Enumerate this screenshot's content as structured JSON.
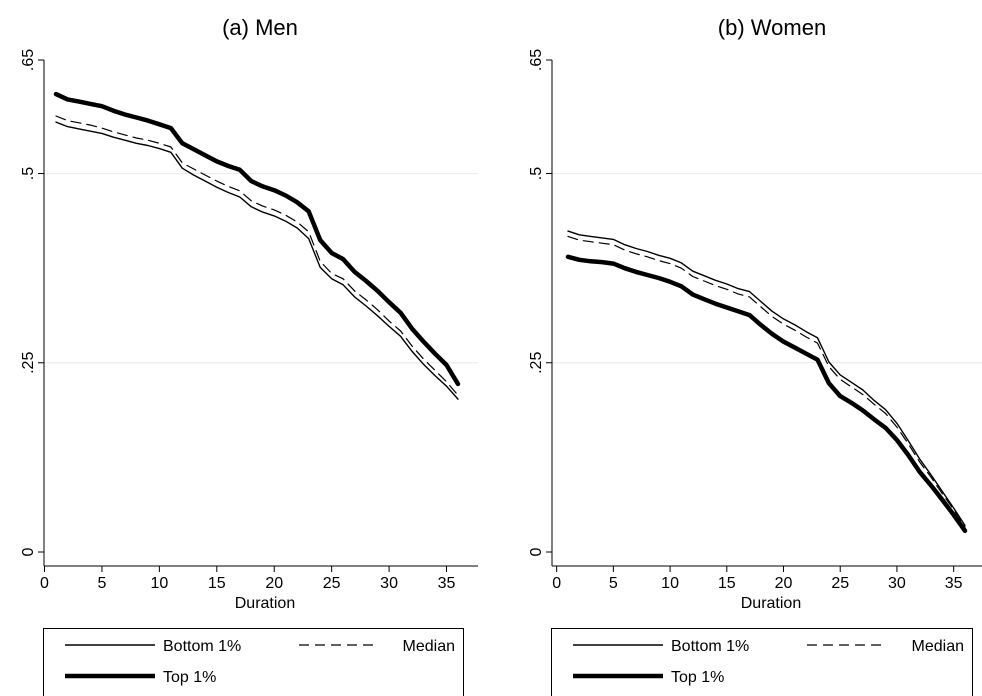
{
  "chart_data": [
    {
      "type": "line",
      "title": "(a) Men",
      "xlabel": "Duration",
      "ylabel": "",
      "xlim": [
        1,
        36
      ],
      "ylim": [
        0,
        0.65
      ],
      "xticks": [
        "0",
        "5",
        "10",
        "15",
        "20",
        "25",
        "30",
        "35"
      ],
      "yticks": [
        "0",
        ".25",
        ".5",
        ".65"
      ],
      "grid": "horizontal",
      "legend": {
        "position": "bottom",
        "entries": [
          "Bottom 1%",
          "Median",
          "Top 1%"
        ]
      },
      "series": [
        {
          "name": "Bottom 1%",
          "style": "thin-solid",
          "x": [
            1,
            2,
            3,
            4,
            5,
            6,
            7,
            8,
            9,
            10,
            11,
            12,
            13,
            14,
            15,
            16,
            17,
            18,
            19,
            20,
            21,
            22,
            23,
            24,
            25,
            26,
            27,
            28,
            29,
            30,
            31,
            32,
            33,
            34,
            35,
            36
          ],
          "values": [
            0.568,
            0.562,
            0.559,
            0.556,
            0.553,
            0.548,
            0.544,
            0.54,
            0.537,
            0.533,
            0.528,
            0.507,
            0.498,
            0.49,
            0.482,
            0.475,
            0.469,
            0.456,
            0.449,
            0.444,
            0.437,
            0.428,
            0.414,
            0.376,
            0.361,
            0.353,
            0.337,
            0.325,
            0.312,
            0.298,
            0.285,
            0.265,
            0.248,
            0.233,
            0.219,
            0.202
          ]
        },
        {
          "name": "Median",
          "style": "dashed",
          "x": [
            1,
            2,
            3,
            4,
            5,
            6,
            7,
            8,
            9,
            10,
            11,
            12,
            13,
            14,
            15,
            16,
            17,
            18,
            19,
            20,
            21,
            22,
            23,
            24,
            25,
            26,
            27,
            28,
            29,
            30,
            31,
            32,
            33,
            34,
            35,
            36
          ],
          "values": [
            0.576,
            0.57,
            0.567,
            0.564,
            0.56,
            0.555,
            0.551,
            0.547,
            0.544,
            0.54,
            0.535,
            0.514,
            0.506,
            0.498,
            0.49,
            0.483,
            0.477,
            0.464,
            0.457,
            0.452,
            0.445,
            0.436,
            0.423,
            0.384,
            0.368,
            0.361,
            0.345,
            0.333,
            0.32,
            0.305,
            0.292,
            0.272,
            0.255,
            0.24,
            0.225,
            0.207
          ]
        },
        {
          "name": "Top 1%",
          "style": "thick-solid",
          "x": [
            1,
            2,
            3,
            4,
            5,
            6,
            7,
            8,
            9,
            10,
            11,
            12,
            13,
            14,
            15,
            16,
            17,
            18,
            19,
            20,
            21,
            22,
            23,
            24,
            25,
            26,
            27,
            28,
            29,
            30,
            31,
            32,
            33,
            34,
            35,
            36
          ],
          "values": [
            0.605,
            0.598,
            0.595,
            0.592,
            0.589,
            0.583,
            0.578,
            0.574,
            0.57,
            0.565,
            0.56,
            0.54,
            0.532,
            0.524,
            0.516,
            0.51,
            0.505,
            0.49,
            0.483,
            0.478,
            0.471,
            0.462,
            0.45,
            0.412,
            0.395,
            0.387,
            0.37,
            0.358,
            0.345,
            0.33,
            0.316,
            0.295,
            0.278,
            0.262,
            0.247,
            0.222
          ]
        }
      ]
    },
    {
      "type": "line",
      "title": "(b) Women",
      "xlabel": "Duration",
      "ylabel": "",
      "xlim": [
        1,
        36
      ],
      "ylim": [
        0,
        0.65
      ],
      "xticks": [
        "0",
        "5",
        "10",
        "15",
        "20",
        "25",
        "30",
        "35"
      ],
      "yticks": [
        "0",
        ".25",
        ".5",
        ".65"
      ],
      "grid": "horizontal",
      "legend": {
        "position": "bottom",
        "entries": [
          "Bottom 1%",
          "Median",
          "Top 1%"
        ]
      },
      "series": [
        {
          "name": "Bottom 1%",
          "style": "thin-solid",
          "x": [
            1,
            2,
            3,
            4,
            5,
            6,
            7,
            8,
            9,
            10,
            11,
            12,
            13,
            14,
            15,
            16,
            17,
            18,
            19,
            20,
            21,
            22,
            23,
            24,
            25,
            26,
            27,
            28,
            29,
            30,
            31,
            32,
            33,
            34,
            35,
            36
          ],
          "values": [
            0.424,
            0.419,
            0.417,
            0.415,
            0.413,
            0.406,
            0.401,
            0.397,
            0.392,
            0.388,
            0.382,
            0.371,
            0.365,
            0.359,
            0.354,
            0.348,
            0.344,
            0.331,
            0.318,
            0.308,
            0.3,
            0.291,
            0.283,
            0.251,
            0.234,
            0.224,
            0.214,
            0.2,
            0.188,
            0.17,
            0.147,
            0.123,
            0.102,
            0.08,
            0.058,
            0.035
          ]
        },
        {
          "name": "Median",
          "style": "dashed",
          "x": [
            1,
            2,
            3,
            4,
            5,
            6,
            7,
            8,
            9,
            10,
            11,
            12,
            13,
            14,
            15,
            16,
            17,
            18,
            19,
            20,
            21,
            22,
            23,
            24,
            25,
            26,
            27,
            28,
            29,
            30,
            31,
            32,
            33,
            34,
            35,
            36
          ],
          "values": [
            0.417,
            0.412,
            0.41,
            0.408,
            0.406,
            0.399,
            0.394,
            0.39,
            0.385,
            0.381,
            0.375,
            0.364,
            0.358,
            0.352,
            0.347,
            0.341,
            0.337,
            0.324,
            0.311,
            0.301,
            0.293,
            0.284,
            0.276,
            0.245,
            0.228,
            0.218,
            0.208,
            0.195,
            0.183,
            0.165,
            0.143,
            0.119,
            0.099,
            0.077,
            0.056,
            0.033
          ]
        },
        {
          "name": "Top 1%",
          "style": "thick-solid",
          "x": [
            1,
            2,
            3,
            4,
            5,
            6,
            7,
            8,
            9,
            10,
            11,
            12,
            13,
            14,
            15,
            16,
            17,
            18,
            19,
            20,
            21,
            22,
            23,
            24,
            25,
            26,
            27,
            28,
            29,
            30,
            31,
            32,
            33,
            34,
            35,
            36
          ],
          "values": [
            0.39,
            0.386,
            0.384,
            0.383,
            0.381,
            0.375,
            0.37,
            0.366,
            0.362,
            0.357,
            0.351,
            0.34,
            0.334,
            0.328,
            0.323,
            0.318,
            0.313,
            0.3,
            0.288,
            0.278,
            0.27,
            0.262,
            0.254,
            0.223,
            0.206,
            0.197,
            0.187,
            0.175,
            0.164,
            0.148,
            0.128,
            0.106,
            0.088,
            0.069,
            0.049,
            0.028
          ]
        }
      ]
    }
  ]
}
